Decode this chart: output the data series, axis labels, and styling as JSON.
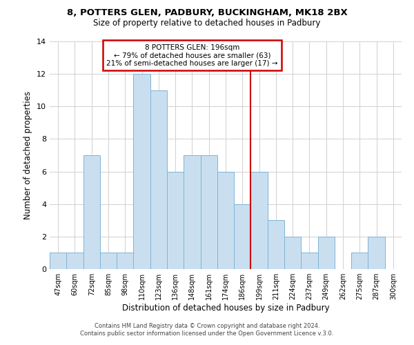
{
  "title": "8, POTTERS GLEN, PADBURY, BUCKINGHAM, MK18 2BX",
  "subtitle": "Size of property relative to detached houses in Padbury",
  "xlabel": "Distribution of detached houses by size in Padbury",
  "ylabel": "Number of detached properties",
  "bar_labels": [
    "47sqm",
    "60sqm",
    "72sqm",
    "85sqm",
    "98sqm",
    "110sqm",
    "123sqm",
    "136sqm",
    "148sqm",
    "161sqm",
    "174sqm",
    "186sqm",
    "199sqm",
    "211sqm",
    "224sqm",
    "237sqm",
    "249sqm",
    "262sqm",
    "275sqm",
    "287sqm",
    "300sqm"
  ],
  "bar_values": [
    1,
    1,
    7,
    1,
    1,
    12,
    11,
    6,
    7,
    7,
    6,
    4,
    6,
    3,
    2,
    1,
    2,
    0,
    1,
    2,
    0
  ],
  "bar_color": "#c9dff0",
  "bar_edge_color": "#7fb3d3",
  "marker_color": "#cc0000",
  "ylim": [
    0,
    14
  ],
  "yticks": [
    0,
    2,
    4,
    6,
    8,
    10,
    12,
    14
  ],
  "annotation_title": "8 POTTERS GLEN: 196sqm",
  "annotation_line1": "← 79% of detached houses are smaller (63)",
  "annotation_line2": "21% of semi-detached houses are larger (17) →",
  "annotation_box_color": "#ffffff",
  "annotation_box_edge": "#cc0000",
  "footer1": "Contains HM Land Registry data © Crown copyright and database right 2024.",
  "footer2": "Contains public sector information licensed under the Open Government Licence v.3.0.",
  "background_color": "#ffffff",
  "grid_color": "#d0d0d0"
}
